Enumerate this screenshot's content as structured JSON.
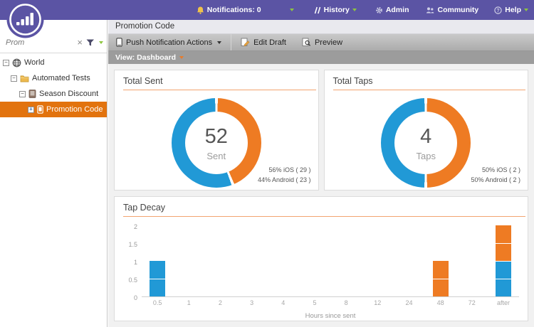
{
  "header": {
    "notifications_label": "Notifications: 0",
    "history_label": "History",
    "admin_label": "Admin",
    "community_label": "Community",
    "help_label": "Help"
  },
  "sidebar": {
    "search_value": "Prom",
    "tree": [
      {
        "label": "World",
        "icon": "globe-icon",
        "selected": false
      },
      {
        "label": "Automated Tests",
        "icon": "folder-icon",
        "selected": false
      },
      {
        "label": "Season Discount",
        "icon": "program-icon",
        "selected": false
      },
      {
        "label": "Promotion Code",
        "icon": "push-program-icon",
        "selected": true
      }
    ]
  },
  "main": {
    "title": "Promotion Code",
    "toolbar": {
      "actions_label": "Push Notification Actions",
      "edit_draft_label": "Edit Draft",
      "preview_label": "Preview"
    },
    "view_label": "View: Dashboard"
  },
  "icons": [
    "marketo-logo",
    "notifications-icon",
    "history-icon",
    "gear-icon",
    "community-icon",
    "help-icon",
    "clear-icon",
    "filter-icon",
    "globe-icon",
    "folder-icon",
    "program-icon",
    "push-program-icon",
    "phone-icon",
    "edit-icon",
    "preview-icon"
  ],
  "colors": {
    "topbar_purple": "#5b54a4",
    "selected_orange": "#e2730e",
    "rule_orange": "#f2a470",
    "chart_blue": "#2199d6",
    "chart_orange": "#ee7b23",
    "caret_green": "#8dc63f"
  },
  "chart_data": [
    {
      "type": "donut",
      "title": "Total Sent",
      "center_value": "52",
      "center_label": "Sent",
      "slices": [
        {
          "name": "iOS",
          "percent": 56,
          "count": 29,
          "color": "#2199d6"
        },
        {
          "name": "Android",
          "percent": 44,
          "count": 23,
          "color": "#ee7b23"
        }
      ],
      "legend": [
        "56% iOS ( 29 )",
        "44% Android ( 23 )"
      ]
    },
    {
      "type": "donut",
      "title": "Total Taps",
      "center_value": "4",
      "center_label": "Taps",
      "slices": [
        {
          "name": "iOS",
          "percent": 50,
          "count": 2,
          "color": "#2199d6"
        },
        {
          "name": "Android",
          "percent": 50,
          "count": 2,
          "color": "#ee7b23"
        }
      ],
      "legend": [
        "50% iOS ( 2 )",
        "50% Android ( 2 )"
      ]
    },
    {
      "type": "bar",
      "stacked": true,
      "title": "Tap Decay",
      "xlabel": "Hours since sent",
      "categories": [
        "0.5",
        "1",
        "2",
        "3",
        "4",
        "5",
        "8",
        "12",
        "24",
        "48",
        "72",
        "after"
      ],
      "series": [
        {
          "name": "iOS",
          "color": "#2199d6",
          "values": [
            1,
            0,
            0,
            0,
            0,
            0,
            0,
            0,
            0,
            0,
            0,
            1
          ]
        },
        {
          "name": "Android",
          "color": "#ee7b23",
          "values": [
            0,
            0,
            0,
            0,
            0,
            0,
            0,
            0,
            0,
            1,
            0,
            1
          ]
        }
      ],
      "ylim": [
        0,
        2
      ],
      "yticks": [
        0,
        0.5,
        1,
        1.5,
        2
      ],
      "grid": false,
      "legend_position": "none"
    }
  ]
}
